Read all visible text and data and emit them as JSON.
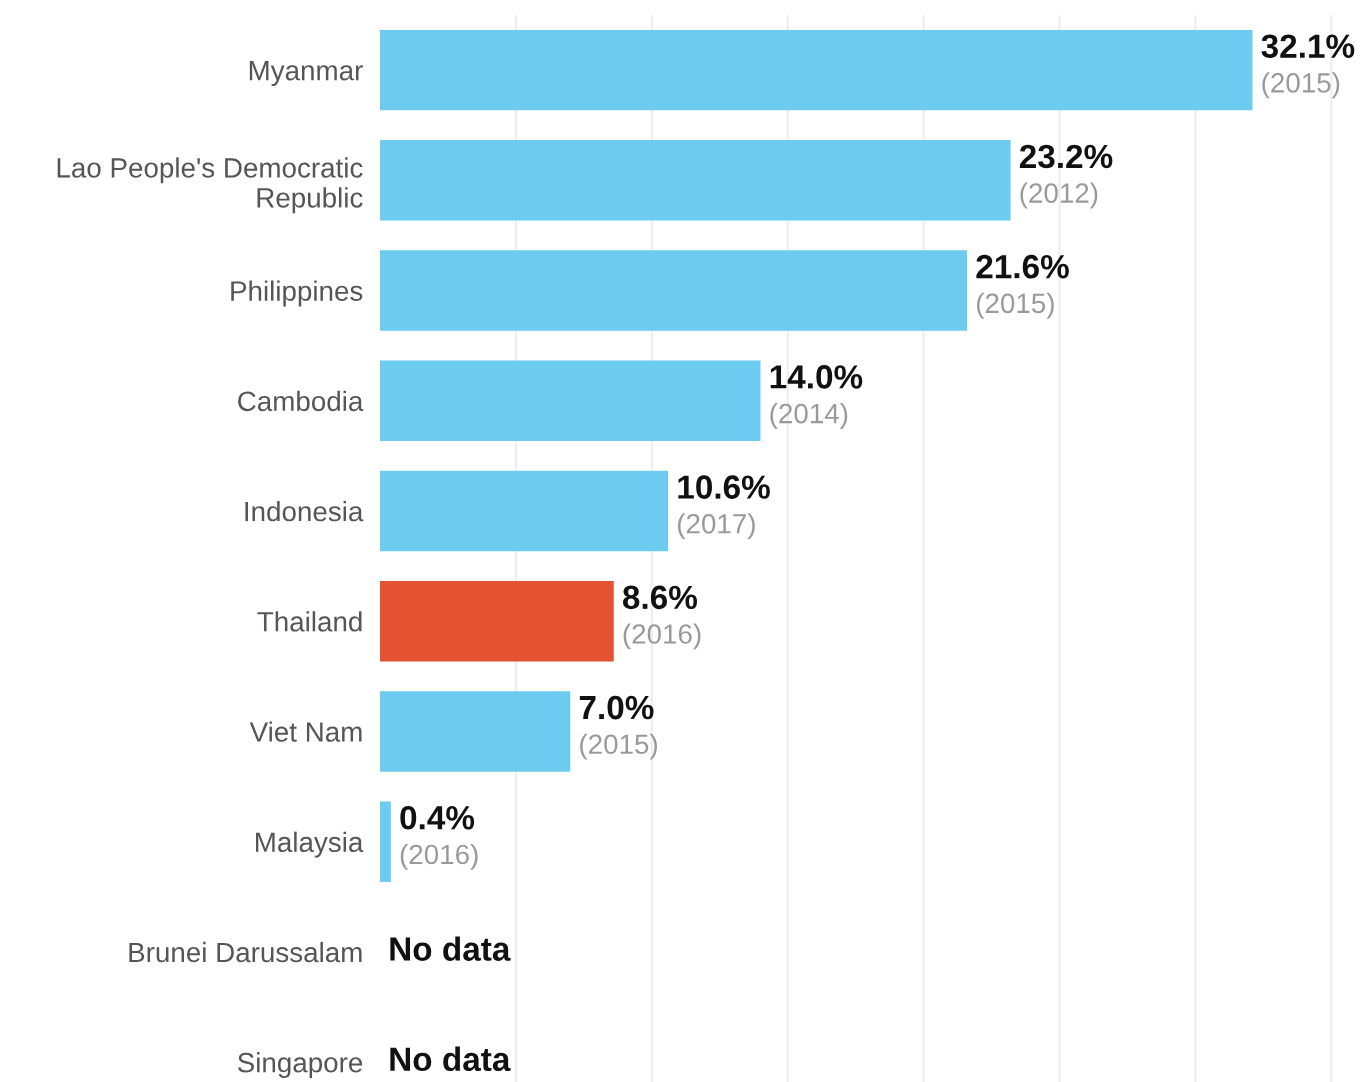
{
  "chart_data": {
    "type": "bar",
    "orientation": "horizontal",
    "categories": [
      "Myanmar",
      "Lao People's Democratic\nRepublic",
      "Philippines",
      "Cambodia",
      "Indonesia",
      "Thailand",
      "Viet Nam",
      "Malaysia",
      "Brunei Darussalam",
      "Singapore"
    ],
    "values": [
      32.1,
      23.2,
      21.6,
      14.0,
      10.6,
      8.6,
      7.0,
      0.4,
      null,
      null
    ],
    "value_labels": [
      "32.1%\n(2015)",
      "23.2%\n(2012)",
      "21.6%\n(2015)",
      "14.0%\n(2014)",
      "10.6%\n(2017)",
      "8.6%\n(2016)",
      "7.0%\n(2015)",
      "0.4%\n(2016)",
      "No data",
      "No data"
    ],
    "colors": [
      "#6ccbee",
      "#6ccbee",
      "#6ccbee",
      "#6ccbee",
      "#6ccbee",
      "#e45232",
      "#6ccbee",
      "#6ccbee",
      "#6ccbee",
      "#6ccbee"
    ],
    "xticks": [
      {
        "value": 5,
        "label": null
      },
      {
        "value": 10,
        "label": null
      },
      {
        "value": 15,
        "label": null
      },
      {
        "value": 20,
        "label": null
      },
      {
        "value": 25,
        "label": null
      },
      {
        "value": 30,
        "label": null
      },
      {
        "value": 35,
        "label": null
      }
    ],
    "grid": "x",
    "tick_labels": "y"
  }
}
